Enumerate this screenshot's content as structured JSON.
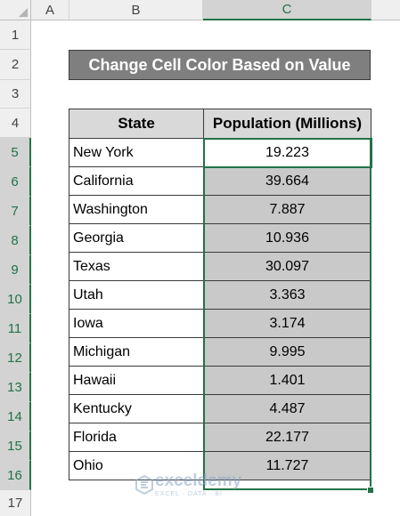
{
  "columns": [
    "A",
    "B",
    "C"
  ],
  "rows": [
    "1",
    "2",
    "3",
    "4",
    "5",
    "6",
    "7",
    "8",
    "9",
    "10",
    "11",
    "12",
    "13",
    "14",
    "15",
    "16",
    "17"
  ],
  "title": "Change Cell Color Based on Value",
  "table": {
    "headers": [
      "State",
      "Population (Millions)"
    ],
    "rows": [
      {
        "state": "New York",
        "population": "19.223"
      },
      {
        "state": "California",
        "population": "39.664"
      },
      {
        "state": "Washington",
        "population": "7.887"
      },
      {
        "state": "Georgia",
        "population": "10.936"
      },
      {
        "state": "Texas",
        "population": "30.097"
      },
      {
        "state": "Utah",
        "population": "3.363"
      },
      {
        "state": "Iowa",
        "population": "3.174"
      },
      {
        "state": "Michigan",
        "population": "9.995"
      },
      {
        "state": "Hawaii",
        "population": "1.401"
      },
      {
        "state": "Kentucky",
        "population": "4.487"
      },
      {
        "state": "Florida",
        "population": "22.177"
      },
      {
        "state": "Ohio",
        "population": "11.727"
      }
    ]
  },
  "watermark": {
    "brand": "exceldemy",
    "tagline": "EXCEL · DATA · BI"
  },
  "colors": {
    "accent": "#217346",
    "title_bg": "#7f7f7f",
    "highlight": "#c9c9c9",
    "header_bg": "#d9d9d9"
  }
}
